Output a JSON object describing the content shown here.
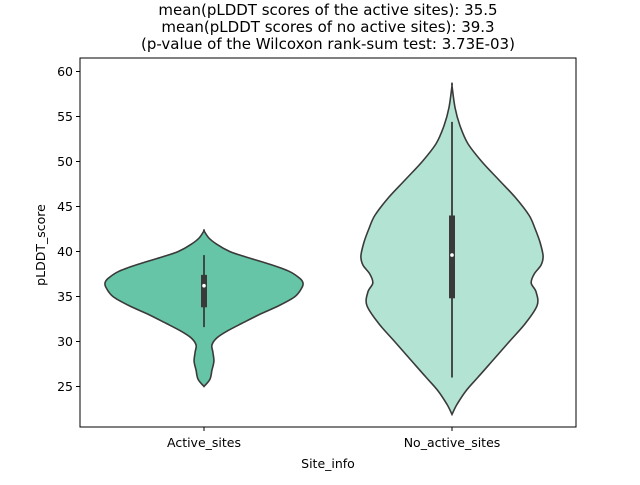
{
  "chart_data": {
    "type": "violin",
    "title_lines": [
      "mean(pLDDT scores of the active sites): 35.5",
      "mean(pLDDT scores of no active sites): 39.3",
      "(p-value of the Wilcoxon rank-sum test: 3.73E-03)"
    ],
    "xlabel": "Site_info",
    "ylabel": "pLDDT_score",
    "ylim": [
      20.5,
      61.5
    ],
    "yticks": [
      25,
      30,
      35,
      40,
      45,
      50,
      55,
      60
    ],
    "categories": [
      "Active_sites",
      "No_active_sites"
    ],
    "grid": false,
    "legend": "none",
    "series": [
      {
        "category": "Active_sites",
        "color": "#66c5a6",
        "min": 25.0,
        "max": 42.3,
        "box": {
          "whisker_low": 31.6,
          "q1": 33.8,
          "median": 36.2,
          "q3": 37.4,
          "whisker_high": 39.6
        },
        "density": [
          [
            25.0,
            0.0
          ],
          [
            25.8,
            0.06
          ],
          [
            26.8,
            0.08
          ],
          [
            27.8,
            0.1
          ],
          [
            28.8,
            0.09
          ],
          [
            29.6,
            0.08
          ],
          [
            30.4,
            0.13
          ],
          [
            31.2,
            0.24
          ],
          [
            32.0,
            0.38
          ],
          [
            33.0,
            0.56
          ],
          [
            34.0,
            0.76
          ],
          [
            35.0,
            0.92
          ],
          [
            36.0,
            0.99
          ],
          [
            36.5,
            1.0
          ],
          [
            37.0,
            0.97
          ],
          [
            37.8,
            0.86
          ],
          [
            38.6,
            0.66
          ],
          [
            39.4,
            0.42
          ],
          [
            40.0,
            0.26
          ],
          [
            40.8,
            0.13
          ],
          [
            41.5,
            0.05
          ],
          [
            42.3,
            0.0
          ]
        ]
      },
      {
        "category": "No_active_sites",
        "color": "#b2e3d3",
        "min": 21.9,
        "max": 58.4,
        "box": {
          "whisker_low": 26.0,
          "q1": 34.8,
          "median": 39.6,
          "q3": 44.0,
          "whisker_high": 54.4
        },
        "density": [
          [
            21.9,
            0.0
          ],
          [
            23.0,
            0.05
          ],
          [
            24.5,
            0.14
          ],
          [
            26.0,
            0.26
          ],
          [
            28.0,
            0.42
          ],
          [
            30.0,
            0.58
          ],
          [
            32.0,
            0.74
          ],
          [
            34.0,
            0.86
          ],
          [
            35.5,
            0.85
          ],
          [
            36.5,
            0.8
          ],
          [
            37.5,
            0.83
          ],
          [
            38.5,
            0.9
          ],
          [
            39.5,
            0.92
          ],
          [
            41.0,
            0.89
          ],
          [
            42.5,
            0.84
          ],
          [
            44.0,
            0.78
          ],
          [
            46.0,
            0.64
          ],
          [
            48.0,
            0.47
          ],
          [
            50.0,
            0.3
          ],
          [
            52.0,
            0.16
          ],
          [
            54.0,
            0.08
          ],
          [
            56.0,
            0.03
          ],
          [
            58.4,
            0.0
          ]
        ]
      }
    ]
  }
}
